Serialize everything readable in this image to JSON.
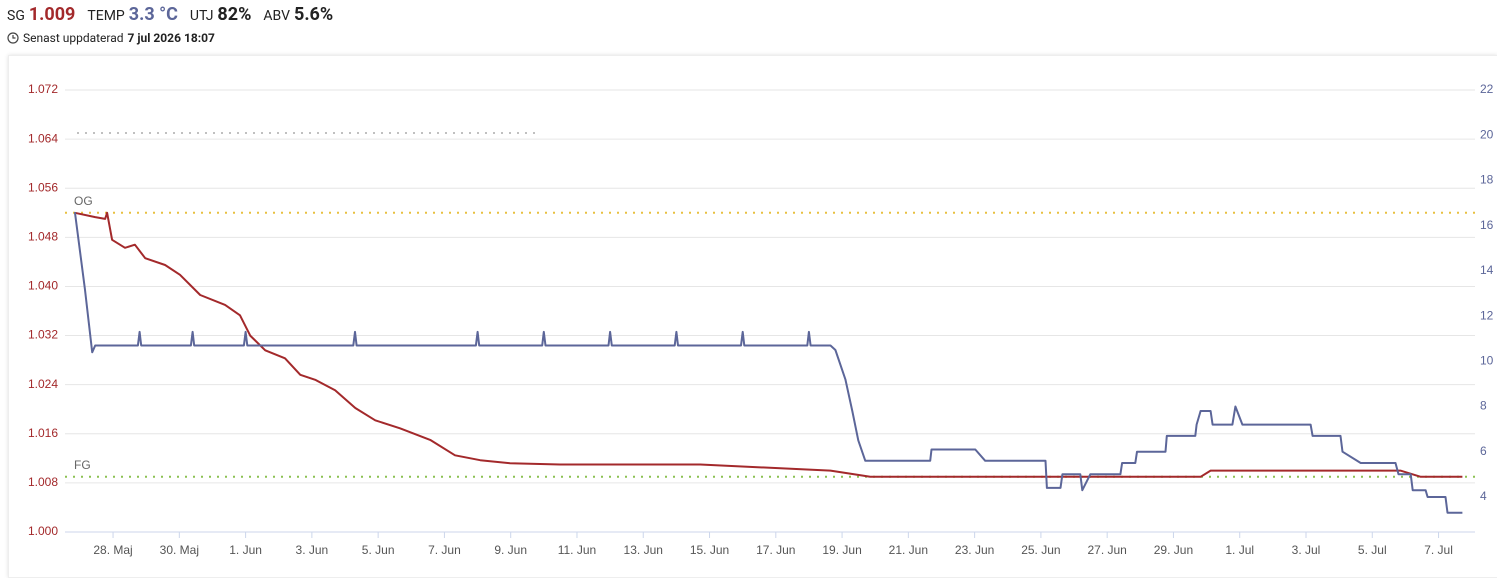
{
  "header": {
    "items": [
      {
        "label": "SG",
        "value": "1.009",
        "color": "#a3292b"
      },
      {
        "label": "TEMP",
        "value": "3.3 °C",
        "color": "#5c6699"
      },
      {
        "label": "UTJ",
        "value": "82%",
        "color": "#222222"
      },
      {
        "label": "ABV",
        "value": "5.6%",
        "color": "#222222"
      }
    ],
    "updated_label": "Senast uppdaterad",
    "updated": "7 jul 2026 18:07"
  },
  "chart_data": {
    "type": "line",
    "xlim": [
      146.55,
      189.1
    ],
    "xticks": [
      {
        "value": 148,
        "label": "28. Maj"
      },
      {
        "value": 150,
        "label": "30. Maj"
      },
      {
        "value": 152,
        "label": "1. Jun"
      },
      {
        "value": 154,
        "label": "3. Jun"
      },
      {
        "value": 156,
        "label": "5. Jun"
      },
      {
        "value": 158,
        "label": "7. Jun"
      },
      {
        "value": 160,
        "label": "9. Jun"
      },
      {
        "value": 162,
        "label": "11. Jun"
      },
      {
        "value": 164,
        "label": "13. Jun"
      },
      {
        "value": 166,
        "label": "15. Jun"
      },
      {
        "value": 168,
        "label": "17. Jun"
      },
      {
        "value": 170,
        "label": "19. Jun"
      },
      {
        "value": 172,
        "label": "21. Jun"
      },
      {
        "value": 174,
        "label": "23. Jun"
      },
      {
        "value": 176,
        "label": "25. Jun"
      },
      {
        "value": 178,
        "label": "27. Jun"
      },
      {
        "value": 180,
        "label": "29. Jun"
      },
      {
        "value": 182,
        "label": "1. Jul"
      },
      {
        "value": 184,
        "label": "3. Jul"
      },
      {
        "value": 186,
        "label": "5. Jul"
      },
      {
        "value": 188,
        "label": "7. Jul"
      }
    ],
    "ylim": [
      1.0,
      1.072
    ],
    "yticks": [
      {
        "value": 1.0,
        "label": "1.000"
      },
      1.008,
      1.016,
      1.024,
      1.032,
      {
        "value": 1.04,
        "label": "1.040"
      },
      {
        "value": 1.048,
        "label": "1.048"
      },
      {
        "value": 1.056,
        "label": "1.056"
      },
      {
        "value": 1.064,
        "label": "1.064"
      },
      {
        "value": 1.072,
        "label": "1.072"
      }
    ],
    "y_color": "#a3292b",
    "y2lim": [
      2.45,
      22
    ],
    "y2ticks": [
      4,
      6,
      8,
      10,
      12,
      14,
      16,
      18,
      20,
      22
    ],
    "y2_color": "#5c6699",
    "grid": true,
    "reference_lines": [
      {
        "label": "OG",
        "value": 1.052,
        "color": "#e8c040"
      },
      {
        "label": "FG",
        "value": 1.009,
        "color": "#8cc152"
      },
      {
        "value": 1.065,
        "x_end": 160.89,
        "color": "#c0c0c0"
      }
    ],
    "series": [
      {
        "name": "SG",
        "color": "#a3292b",
        "x": [
          146.85,
          147.46,
          147.76,
          147.82,
          147.97,
          148.36,
          148.66,
          148.97,
          149.57,
          150.02,
          150.63,
          151.38,
          151.83,
          152.14,
          152.59,
          153.19,
          153.65,
          154.1,
          154.7,
          155.31,
          155.91,
          156.66,
          157.57,
          158.32,
          159.08,
          159.98,
          161.49,
          165.72,
          169.65,
          170.85,
          180.82,
          181.12,
          186.85,
          187.46,
          188.72
        ],
        "values": [
          1.052,
          1.0513,
          1.051,
          1.052,
          1.0476,
          1.0463,
          1.0468,
          1.0446,
          1.0435,
          1.0419,
          1.0386,
          1.037,
          1.0353,
          1.032,
          1.0296,
          1.0283,
          1.0256,
          1.0248,
          1.0231,
          1.0202,
          1.0182,
          1.0169,
          1.015,
          1.0125,
          1.0117,
          1.0112,
          1.011,
          1.011,
          1.01,
          1.009,
          1.009,
          1.01,
          1.01,
          1.009,
          1.009
        ]
      },
      {
        "name": "TEMP",
        "color": "#5c6699",
        "axis": "y2",
        "x": [
          146.85,
          147.15,
          147.37,
          147.46,
          148.75,
          148.8,
          148.85,
          150.35,
          150.4,
          150.45,
          151.95,
          152.0,
          152.05,
          155.25,
          155.3,
          155.35,
          158.95,
          159.0,
          159.05,
          160.95,
          161.0,
          161.05,
          162.95,
          163.0,
          163.05,
          164.95,
          165.0,
          165.05,
          166.95,
          167.0,
          167.05,
          168.95,
          169.0,
          169.05,
          169.65,
          169.8,
          170.1,
          170.31,
          170.49,
          170.7,
          172.66,
          172.7,
          174.02,
          174.32,
          176.14,
          176.18,
          176.59,
          176.65,
          177.19,
          177.25,
          177.49,
          178.4,
          178.45,
          178.85,
          178.9,
          179.76,
          179.8,
          180.66,
          180.7,
          180.82,
          181.12,
          181.18,
          181.78,
          181.87,
          182.08,
          184.14,
          184.2,
          185.04,
          185.1,
          185.65,
          186.7,
          186.79,
          187.16,
          187.22,
          187.61,
          187.67,
          188.21,
          188.27,
          188.72
        ],
        "values": [
          16.6,
          13.2,
          10.4,
          10.7,
          10.7,
          11.3,
          10.7,
          10.7,
          11.3,
          10.7,
          10.7,
          11.3,
          10.7,
          10.7,
          11.3,
          10.7,
          10.7,
          11.3,
          10.7,
          10.7,
          11.3,
          10.7,
          10.7,
          11.3,
          10.7,
          10.7,
          11.3,
          10.7,
          10.7,
          11.3,
          10.7,
          10.7,
          11.3,
          10.7,
          10.7,
          10.5,
          9.2,
          7.8,
          6.5,
          5.6,
          5.6,
          6.1,
          6.1,
          5.6,
          5.6,
          4.4,
          4.4,
          5.0,
          5.0,
          4.3,
          5.0,
          5.0,
          5.5,
          5.5,
          6.0,
          6.0,
          6.7,
          6.7,
          7.2,
          7.8,
          7.8,
          7.2,
          7.2,
          8.0,
          7.2,
          7.2,
          6.7,
          6.7,
          6.0,
          5.5,
          5.5,
          5.0,
          5.0,
          4.3,
          4.3,
          4.0,
          4.0,
          3.3,
          3.3
        ]
      }
    ]
  }
}
